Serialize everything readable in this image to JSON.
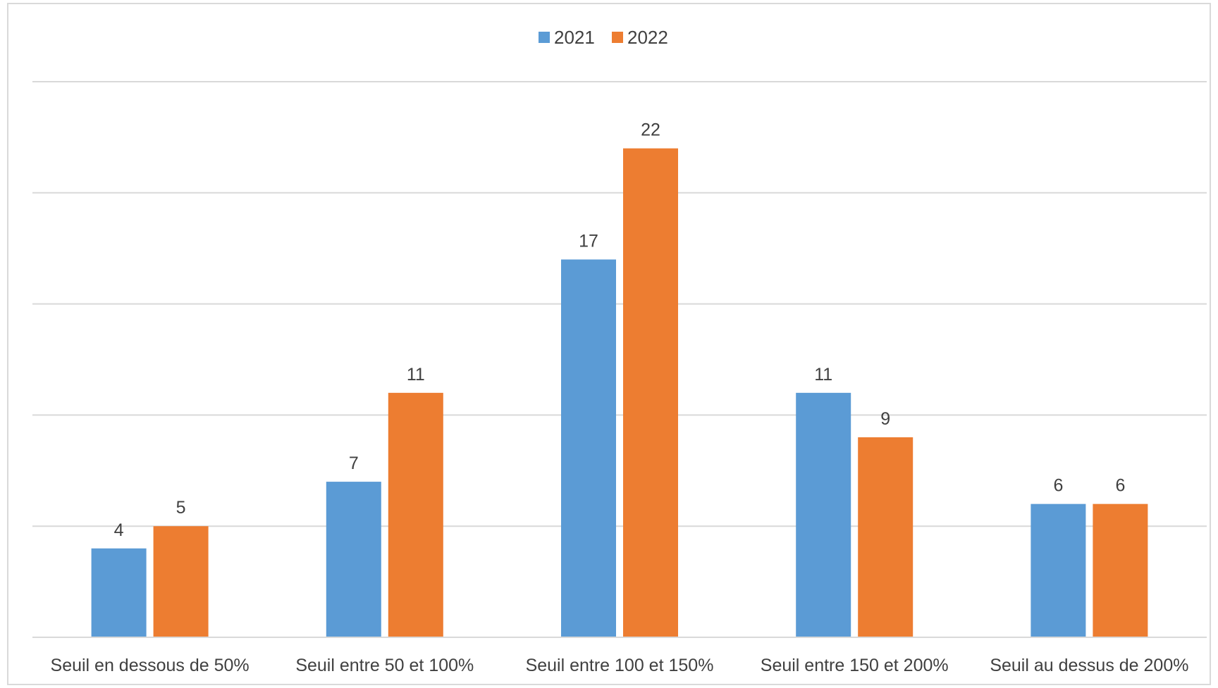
{
  "chart_data": {
    "type": "bar",
    "categories": [
      "Seuil en dessous de 50%",
      "Seuil entre 50 et 100%",
      "Seuil entre 100 et 150%",
      "Seuil entre 150 et 200%",
      "Seuil au dessus de 200%"
    ],
    "series": [
      {
        "name": "2021",
        "color": "#5b9bd5",
        "values": [
          4,
          7,
          17,
          11,
          6
        ]
      },
      {
        "name": "2022",
        "color": "#ed7d31",
        "values": [
          5,
          11,
          22,
          9,
          6
        ]
      }
    ],
    "title": "",
    "xlabel": "",
    "ylabel": "",
    "ylim": [
      0,
      25
    ],
    "y_axis_labels_shown": false,
    "grid": true,
    "data_labels": true,
    "legend_position": "top-center"
  }
}
